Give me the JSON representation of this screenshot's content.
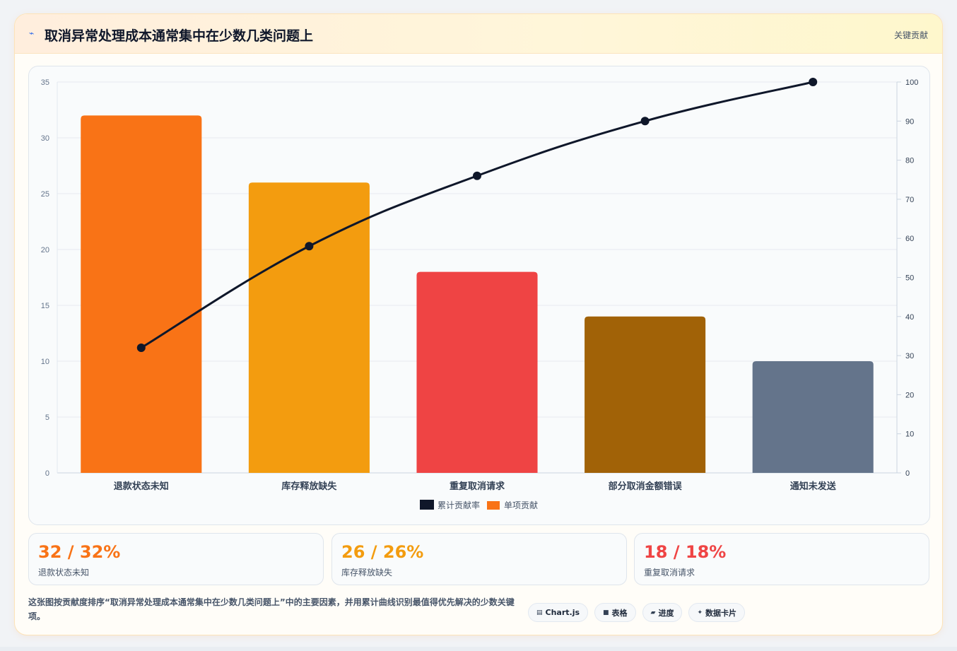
{
  "header": {
    "icon": "lightning-icon",
    "title": "取消异常处理成本通常集中在少数几类问题上",
    "badge": "关键贡献"
  },
  "chart_data": {
    "type": "bar",
    "categories": [
      "退款状态未知",
      "库存释放缺失",
      "重复取消请求",
      "部分取消金额错误",
      "通知未发送"
    ],
    "series": [
      {
        "name": "单项贡献",
        "type": "bar",
        "axis": "left",
        "values": [
          32,
          26,
          18,
          14,
          10
        ],
        "colors": [
          "#f97316",
          "#f39c0f",
          "#ef4444",
          "#a16207",
          "#64748b"
        ]
      },
      {
        "name": "累计贡献率",
        "type": "line",
        "axis": "right",
        "values": [
          32,
          58,
          76,
          90,
          100
        ],
        "color": "#0f172a"
      }
    ],
    "y_left": {
      "min": 0,
      "max": 35,
      "ticks": [
        0,
        5,
        10,
        15,
        20,
        25,
        30,
        35
      ]
    },
    "y_right": {
      "min": 0,
      "max": 100,
      "ticks": [
        0,
        10,
        20,
        30,
        40,
        50,
        60,
        70,
        80,
        90,
        100
      ]
    },
    "legend": [
      "累计贡献率",
      "单项贡献"
    ],
    "legend_colors": [
      "#0f172a",
      "#f97316"
    ],
    "legend_position": "bottom",
    "grid": true
  },
  "stats": [
    {
      "value": "32 / 32%",
      "label": "退款状态未知",
      "color": "#f97316"
    },
    {
      "value": "26 / 26%",
      "label": "库存释放缺失",
      "color": "#f39c0f"
    },
    {
      "value": "18 / 18%",
      "label": "重复取消请求",
      "color": "#ef4444"
    }
  ],
  "footnote": "这张图按贡献度排序“取消异常处理成本通常集中在少数几类问题上”中的主要因素，并用累计曲线识别最值得优先解决的少数关键项。",
  "tags": [
    {
      "icon": "chart-icon",
      "label": "Chart.js"
    },
    {
      "icon": "table-icon",
      "label": "表格"
    },
    {
      "icon": "progress-icon",
      "label": "进度"
    },
    {
      "icon": "sparkle-icon",
      "label": "数据卡片"
    }
  ]
}
